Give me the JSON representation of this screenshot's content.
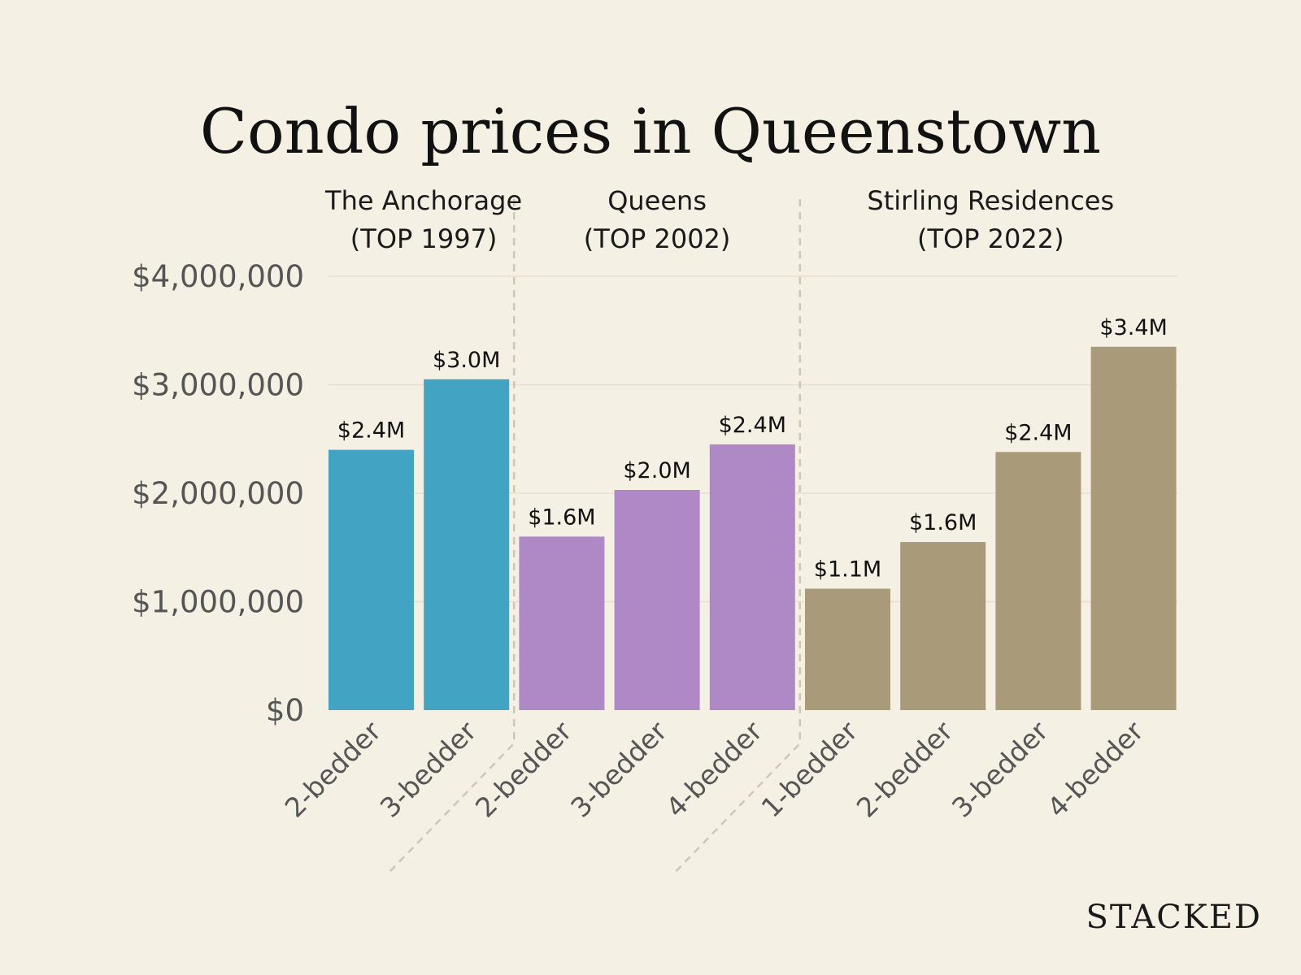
{
  "chart_data": {
    "type": "bar",
    "title": "Condo prices in Queenstown",
    "ylim": [
      0,
      4000000
    ],
    "y_ticks": [
      0,
      1000000,
      2000000,
      3000000,
      4000000
    ],
    "y_tick_labels": [
      "$0",
      "$1,000,000",
      "$2,000,000",
      "$3,000,000",
      "$4,000,000"
    ],
    "grid": true,
    "groups": [
      {
        "name_line1": "The Anchorage",
        "name_line2": "(TOP 1997)",
        "color": "#43a3c3",
        "bars": [
          {
            "category": "2-bedder",
            "value": 2400000,
            "label": "$2.4M"
          },
          {
            "category": "3-bedder",
            "value": 3050000,
            "label": "$3.0M"
          }
        ]
      },
      {
        "name_line1": "Queens",
        "name_line2": "(TOP 2002)",
        "color": "#ae89c6",
        "bars": [
          {
            "category": "2-bedder",
            "value": 1600000,
            "label": "$1.6M"
          },
          {
            "category": "3-bedder",
            "value": 2030000,
            "label": "$2.0M"
          },
          {
            "category": "4-bedder",
            "value": 2450000,
            "label": "$2.4M"
          }
        ]
      },
      {
        "name_line1": "Stirling Residences",
        "name_line2": "(TOP 2022)",
        "color": "#a99b7a",
        "bars": [
          {
            "category": "1-bedder",
            "value": 1120000,
            "label": "$1.1M"
          },
          {
            "category": "2-bedder",
            "value": 1550000,
            "label": "$1.6M"
          },
          {
            "category": "3-bedder",
            "value": 2380000,
            "label": "$2.4M"
          },
          {
            "category": "4-bedder",
            "value": 3350000,
            "label": "$3.4M"
          }
        ]
      }
    ]
  },
  "brand": "STACKED"
}
